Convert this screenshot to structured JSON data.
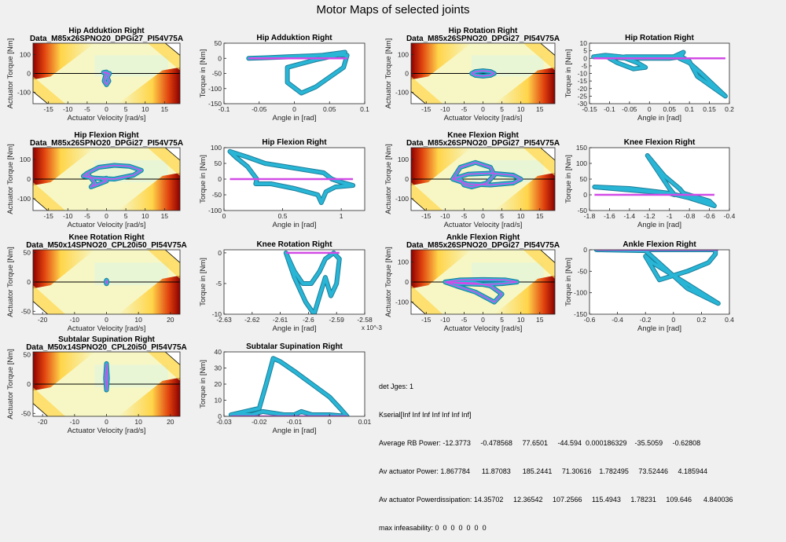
{
  "figure_title": "Motor Maps of selected joints",
  "colors": {
    "background": "#f0f0f0",
    "trajectory_outer": "#29b6d6",
    "trajectory_inner": "#d24be6",
    "map_hot": "#8b0000",
    "map_mid": "#ffd54a",
    "map_light": "#f7f7c5",
    "map_safe": "#e6f5d7"
  },
  "info_lines": [
    "det Jges: 1",
    "Kserial[Inf Inf Inf Inf Inf Inf Inf]",
    "Average RB Power: -12.3773     -0.478568     77.6501     -44.594  0.000186329    -35.5059     -0.62808",
    "Av actuator Power: 1.867784      11.87083      185.2441     71.30616    1.782495     73.52446     4.185944",
    "Av actuator Powerdissipation: 14.35702     12.36542     107.2566     115.4943     1.78231     109.646      4.840036",
    "max infeasability: 0  0  0  0  0  0  0"
  ],
  "chart_data": [
    {
      "type": "heatmap",
      "title": "Hip Adduktion Right",
      "subtitle": "Data_M85x26SPNO20_DPGi27_PI54V75A",
      "xlabel": "Actuator Velocity [rad/s]",
      "ylabel": "Actuator Torque [Nm]",
      "xlim": [
        -19,
        19
      ],
      "ylim": [
        -160,
        160
      ],
      "xticks": [
        -15,
        -10,
        -5,
        0,
        5,
        10,
        15
      ],
      "yticks": [
        -100,
        0,
        100
      ],
      "trajectory": {
        "x": [
          0,
          -0.8,
          0,
          0.8,
          0.2,
          0.6,
          0,
          -0.6,
          0
        ],
        "y": [
          8,
          5,
          2,
          0,
          -20,
          -40,
          -60,
          -40,
          8
        ]
      }
    },
    {
      "type": "line",
      "title": "Hip Adduktion Right",
      "xlabel": "Angle in [rad]",
      "ylabel": "Torque in [Nm]",
      "xlim": [
        -0.1,
        0.1
      ],
      "ylim": [
        -150,
        50
      ],
      "xticks": [
        -0.1,
        -0.05,
        0,
        0.05,
        0.1
      ],
      "yticks": [
        -150,
        -100,
        -50,
        0,
        50
      ],
      "trajectory": {
        "x": [
          -0.065,
          -0.04,
          -0.01,
          0.02,
          0.06,
          0.075,
          0.07,
          0.03,
          0.01,
          -0.01,
          -0.01,
          0.03,
          0.06,
          0.072,
          0.065,
          0.04,
          0.0,
          -0.04,
          -0.065
        ],
        "y": [
          0,
          2,
          5,
          8,
          12,
          10,
          -30,
          -95,
          -115,
          -80,
          -30,
          -5,
          10,
          20,
          18,
          10,
          5,
          2,
          0
        ]
      }
    },
    {
      "type": "heatmap",
      "title": "Hip Rotation Right",
      "subtitle": "Data_M85x26SPNO20_DPGi27_PI54V75A",
      "xlabel": "Actuator Velocity [rad/s]",
      "ylabel": "Actuator Torque [Nm]",
      "xlim": [
        -19,
        19
      ],
      "ylim": [
        -160,
        160
      ],
      "xticks": [
        -15,
        -10,
        -5,
        0,
        5,
        10,
        15
      ],
      "yticks": [
        -100,
        0,
        100
      ],
      "trajectory": {
        "x": [
          -3,
          -2,
          0,
          2,
          3,
          2,
          0,
          -2,
          -3
        ],
        "y": [
          0,
          10,
          14,
          10,
          0,
          -10,
          -14,
          -10,
          0
        ]
      }
    },
    {
      "type": "line",
      "title": "Hip Rotation Right",
      "xlabel": "Angle in [rad]",
      "ylabel": "Torque in [Nm]",
      "xlim": [
        -0.15,
        0.2
      ],
      "ylim": [
        -30,
        10
      ],
      "xticks": [
        -0.15,
        -0.1,
        -0.05,
        0,
        0.05,
        0.1,
        0.15,
        0.2
      ],
      "yticks": [
        -30,
        -25,
        -20,
        -15,
        -10,
        -5,
        0,
        5,
        10
      ],
      "trajectory": {
        "x": [
          -0.14,
          -0.11,
          -0.07,
          -0.03,
          -0.01,
          -0.04,
          -0.08,
          -0.1,
          -0.06,
          0,
          0.06,
          0.085,
          0.075,
          0.1,
          0.13,
          0.19,
          0.12,
          0.1,
          0.08,
          0.05,
          -0.05,
          -0.12,
          -0.14
        ],
        "y": [
          1,
          2,
          1,
          -3,
          -6,
          -7,
          -3,
          0,
          1,
          1,
          1,
          4,
          0,
          -3,
          -10,
          -25,
          -12,
          -2,
          1,
          0,
          0,
          1,
          1
        ]
      }
    },
    {
      "type": "heatmap",
      "title": "Hip Flexion Right",
      "subtitle": "Data_M85x26SPNO20_DPGi27_PI54V75A",
      "xlabel": "Actuator Velocity [rad/s]",
      "ylabel": "Actuator Torque [Nm]",
      "xlim": [
        -19,
        19
      ],
      "ylim": [
        -160,
        160
      ],
      "xticks": [
        -15,
        -10,
        -5,
        0,
        5,
        10,
        15
      ],
      "yticks": [
        -100,
        0,
        100
      ],
      "trajectory": {
        "x": [
          -5,
          -2,
          2,
          6,
          9,
          7,
          2,
          -3,
          -6,
          -5,
          -3,
          -4,
          -2,
          0,
          -1,
          0
        ],
        "y": [
          30,
          60,
          70,
          65,
          45,
          20,
          0,
          5,
          15,
          30,
          -20,
          -40,
          -25,
          -10,
          0,
          5
        ]
      }
    },
    {
      "type": "line",
      "title": "Hip Flexion Right",
      "xlabel": "Angle in [rad]",
      "ylabel": "Torque in [Nm]",
      "xlim": [
        0,
        1.2
      ],
      "ylim": [
        -100,
        100
      ],
      "xticks": [
        0,
        0.5,
        1
      ],
      "yticks": [
        -100,
        -50,
        0,
        50,
        100
      ],
      "trajectory": {
        "x": [
          0.05,
          0.2,
          0.35,
          0.6,
          0.85,
          0.92,
          1.0,
          1.1,
          0.95,
          0.87,
          0.83,
          0.8,
          0.6,
          0.4,
          0.27,
          0.28,
          0.2,
          0.1,
          0.05
        ],
        "y": [
          88,
          70,
          50,
          35,
          20,
          0,
          -10,
          -20,
          -25,
          -40,
          -75,
          -50,
          -30,
          -15,
          -15,
          0,
          40,
          70,
          88
        ]
      }
    },
    {
      "type": "heatmap",
      "title": "Knee Flexion Right",
      "subtitle": "Data_M85x26SPNO20_DPGi27_PI54V75A",
      "xlabel": "Actuator Velocity [rad/s]",
      "ylabel": "Actuator Torque [Nm]",
      "xlim": [
        -19,
        19
      ],
      "ylim": [
        -160,
        160
      ],
      "xticks": [
        -15,
        -10,
        -5,
        0,
        5,
        10,
        15
      ],
      "yticks": [
        -100,
        0,
        100
      ],
      "trajectory": {
        "x": [
          -8,
          -4,
          2,
          8,
          10,
          8,
          2,
          -4,
          -8,
          -6,
          -2,
          2,
          3,
          1,
          -3,
          -5,
          -6
        ],
        "y": [
          0,
          25,
          30,
          20,
          0,
          -20,
          -30,
          -25,
          0,
          60,
          85,
          60,
          20,
          -20,
          -40,
          -30,
          0
        ]
      }
    },
    {
      "type": "line",
      "title": "Knee Flexion Right",
      "xlabel": "Angle in [rad]",
      "ylabel": "Torque in [Nm]",
      "xlim": [
        -1.8,
        -0.4
      ],
      "ylim": [
        -50,
        150
      ],
      "xticks": [
        -1.8,
        -1.6,
        -1.4,
        -1.2,
        -1.0,
        -0.8,
        -0.6,
        -0.4
      ],
      "yticks": [
        -50,
        0,
        50,
        100,
        150
      ],
      "trajectory": {
        "x": [
          -1.75,
          -1.5,
          -1.2,
          -1.0,
          -0.95,
          -1.0,
          -1.22,
          -1.05,
          -0.9,
          -0.86,
          -0.6,
          -0.55,
          -0.8,
          -1.0,
          -1.4,
          -1.75
        ],
        "y": [
          25,
          18,
          10,
          5,
          0,
          20,
          125,
          60,
          20,
          5,
          -20,
          -35,
          -10,
          5,
          20,
          25
        ]
      }
    },
    {
      "type": "heatmap",
      "title": "Knee Rotation Right",
      "subtitle": "Data_M50x14SPNO20_CPL20i50_PI54V75A",
      "xlabel": "Actuator Velocity [rad/s]",
      "ylabel": "Actuator Torque [Nm]",
      "xlim": [
        -23,
        23
      ],
      "ylim": [
        -55,
        55
      ],
      "xticks": [
        -20,
        -10,
        0,
        10,
        20
      ],
      "yticks": [
        -50,
        0,
        50
      ],
      "trajectory": {
        "x": [
          0,
          0.2,
          0,
          -0.2,
          0
        ],
        "y": [
          3,
          0,
          -3,
          0,
          3
        ]
      }
    },
    {
      "type": "line",
      "title": "Knee Rotation Right",
      "xlabel": "Angle in [rad]",
      "ylabel": "Torque in [Nm]",
      "xlim": [
        -0.00263,
        -0.00258
      ],
      "ylim": [
        -10,
        0.5
      ],
      "xticks": [
        -0.00263,
        -0.00262,
        -0.00261,
        -0.0026,
        -0.00259,
        -0.00258
      ],
      "xticklabels": [
        "-2.63",
        "-2.62",
        "-2.61",
        "-2.6",
        "-2.59",
        "-2.58"
      ],
      "xexponent": "x 10^-3",
      "yticks": [
        -10,
        -5,
        0
      ],
      "trajectory": {
        "x": [
          -0.002608,
          -0.002605,
          -0.002601,
          -0.002598,
          -0.002596,
          -0.002594,
          -0.002592,
          -0.00259,
          -0.002589,
          -0.002591,
          -0.002594,
          -0.002596,
          -0.002599,
          -0.002602,
          -0.002605,
          -0.002607,
          -0.002608
        ],
        "y": [
          0,
          -4,
          -8,
          -10,
          -7,
          -4,
          -7,
          -5,
          -1,
          0,
          -1,
          -3,
          -5,
          -5,
          -3,
          -1,
          0
        ]
      }
    },
    {
      "type": "heatmap",
      "title": "Ankle Flexion Right",
      "subtitle": "Data_M85x26SPNO20_DPGi27_PI54V75A",
      "xlabel": "Actuator Velocity [rad/s]",
      "ylabel": "Actuator Torque [Nm]",
      "xlim": [
        -19,
        19
      ],
      "ylim": [
        -160,
        160
      ],
      "xticks": [
        -15,
        -10,
        -5,
        0,
        5,
        10,
        15
      ],
      "yticks": [
        -100,
        0,
        100
      ],
      "trajectory": {
        "x": [
          -10,
          -6,
          0,
          6,
          9,
          5,
          0,
          -6,
          -10,
          -7,
          -2,
          3,
          5,
          2,
          -2,
          -10
        ],
        "y": [
          0,
          10,
          12,
          10,
          0,
          -8,
          -12,
          -8,
          0,
          -20,
          -50,
          -100,
          -60,
          -20,
          -5,
          0
        ]
      }
    },
    {
      "type": "line",
      "title": "Ankle Flexion Right",
      "xlabel": "Angle in [rad]",
      "ylabel": "Torque in [Nm]",
      "xlim": [
        -0.6,
        0.4
      ],
      "ylim": [
        -150,
        0
      ],
      "xticks": [
        -0.6,
        -0.4,
        -0.2,
        0,
        0.2,
        0.4
      ],
      "yticks": [
        -150,
        -100,
        -50,
        0
      ],
      "trajectory": {
        "x": [
          -0.55,
          -0.3,
          0,
          0.3,
          0.3,
          0.25,
          0.1,
          -0.1,
          -0.2,
          -0.15,
          0.1,
          0.32,
          0.1,
          -0.2,
          -0.55
        ],
        "y": [
          0,
          0,
          0,
          0,
          -10,
          -30,
          -50,
          -70,
          -15,
          -30,
          -80,
          -125,
          -90,
          -2,
          0
        ]
      }
    },
    {
      "type": "heatmap",
      "title": "Subtalar Supination Right",
      "subtitle": "Data_M50x14SPNO20_CPL20i50_PI54V75A",
      "xlabel": "Actuator Velocity [rad/s]",
      "ylabel": "Actuator Torque [Nm]",
      "xlim": [
        -23,
        23
      ],
      "ylim": [
        -55,
        55
      ],
      "xticks": [
        -20,
        -10,
        0,
        10,
        20
      ],
      "yticks": [
        -50,
        0,
        50
      ],
      "trajectory": {
        "x": [
          0,
          0.3,
          0,
          -0.3,
          0
        ],
        "y": [
          35,
          10,
          -10,
          10,
          35
        ]
      }
    },
    {
      "type": "line",
      "title": "Subtalar Supination Right",
      "xlabel": "Angle in [rad]",
      "ylabel": "Torque in [Nm]",
      "xlim": [
        -0.03,
        0.01
      ],
      "ylim": [
        0,
        40
      ],
      "xticks": [
        -0.03,
        -0.02,
        -0.01,
        0,
        0.01
      ],
      "yticks": [
        0,
        10,
        20,
        30,
        40
      ],
      "trajectory": {
        "x": [
          -0.028,
          -0.02,
          -0.018,
          -0.016,
          -0.014,
          -0.01,
          -0.005,
          0.0,
          0.003,
          0.005,
          0.0,
          -0.005,
          -0.008,
          -0.01,
          -0.013,
          -0.016,
          -0.019,
          -0.022,
          -0.028
        ],
        "y": [
          1,
          5,
          20,
          36,
          34,
          28,
          20,
          12,
          5,
          0,
          1,
          1,
          3,
          1,
          1,
          2,
          3,
          1,
          1
        ]
      }
    }
  ]
}
